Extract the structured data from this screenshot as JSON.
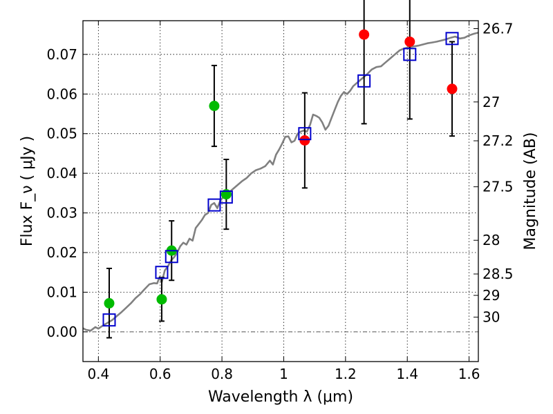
{
  "chart_data": {
    "type": "scatter",
    "xlabel": "Wavelength  λ (μm)",
    "ylabel": "Flux  F_ν  ( μJy )",
    "ylabel_right": "Magnitude (AB)",
    "xlim": [
      0.35,
      1.63
    ],
    "ylim": [
      -0.0075,
      0.0785
    ],
    "x_ticks": [
      0.4,
      0.6,
      0.8,
      1.0,
      1.2,
      1.4,
      1.6
    ],
    "x_tick_labels": [
      "0.4",
      "0.6",
      "0.8",
      "1",
      "1.2",
      "1.4",
      "1.6"
    ],
    "y_ticks": [
      0.0,
      0.01,
      0.02,
      0.03,
      0.04,
      0.05,
      0.06,
      0.07
    ],
    "y_tick_labels": [
      "0.00",
      "0.01",
      "0.02",
      "0.03",
      "0.04",
      "0.05",
      "0.06",
      "0.07"
    ],
    "right_ticks": [
      {
        "label": "26.7",
        "flux": 0.0765
      },
      {
        "label": "27",
        "flux": 0.058
      },
      {
        "label": "27.2",
        "flux": 0.0482
      },
      {
        "label": "27.5",
        "flux": 0.0366
      },
      {
        "label": "28",
        "flux": 0.0231
      },
      {
        "label": "28.5",
        "flux": 0.0146
      },
      {
        "label": "29",
        "flux": 0.0092
      },
      {
        "label": "30",
        "flux": 0.0037
      }
    ],
    "grid": true,
    "colors": {
      "green_points": "#00bb00",
      "red_points": "#ff0000",
      "model_squares": "#0000cc",
      "template_line": "#808080",
      "errorbars": "#000000"
    },
    "green_points": [
      {
        "x": 0.435,
        "y": 0.0072,
        "yerr_low": 0.0087,
        "yerr_high": 0.0088
      },
      {
        "x": 0.605,
        "y": 0.0082,
        "yerr_low": 0.0055,
        "yerr_high": 0.0055
      },
      {
        "x": 0.637,
        "y": 0.0205,
        "yerr_low": 0.0075,
        "yerr_high": 0.0075
      },
      {
        "x": 0.775,
        "y": 0.057,
        "yerr_low": 0.0102,
        "yerr_high": 0.0102
      },
      {
        "x": 0.814,
        "y": 0.0347,
        "yerr_low": 0.0088,
        "yerr_high": 0.0088
      }
    ],
    "red_points": [
      {
        "x": 1.068,
        "y": 0.0483,
        "yerr_low": 0.012,
        "yerr_high": 0.012
      },
      {
        "x": 1.26,
        "y": 0.075,
        "yerr_low": 0.0225,
        "yerr_high": 0.0225
      },
      {
        "x": 1.408,
        "y": 0.0732,
        "yerr_low": 0.0195,
        "yerr_high": 0.0195
      },
      {
        "x": 1.545,
        "y": 0.0613,
        "yerr_low": 0.0119,
        "yerr_high": 0.0119
      }
    ],
    "model_squares": [
      {
        "x": 0.435,
        "y": 0.003
      },
      {
        "x": 0.605,
        "y": 0.015
      },
      {
        "x": 0.637,
        "y": 0.019
      },
      {
        "x": 0.775,
        "y": 0.032
      },
      {
        "x": 0.814,
        "y": 0.034
      },
      {
        "x": 1.068,
        "y": 0.05
      },
      {
        "x": 1.26,
        "y": 0.0633
      },
      {
        "x": 1.408,
        "y": 0.07
      },
      {
        "x": 1.545,
        "y": 0.074
      }
    ],
    "template_line": [
      [
        0.35,
        0.0009
      ],
      [
        0.36,
        0.0005
      ],
      [
        0.375,
        0.0003
      ],
      [
        0.39,
        0.0012
      ],
      [
        0.4,
        0.0008
      ],
      [
        0.415,
        0.0016
      ],
      [
        0.43,
        0.0023
      ],
      [
        0.445,
        0.003
      ],
      [
        0.46,
        0.004
      ],
      [
        0.475,
        0.005
      ],
      [
        0.49,
        0.0061
      ],
      [
        0.505,
        0.0072
      ],
      [
        0.52,
        0.0085
      ],
      [
        0.535,
        0.0095
      ],
      [
        0.55,
        0.0108
      ],
      [
        0.565,
        0.012
      ],
      [
        0.58,
        0.0123
      ],
      [
        0.59,
        0.0122
      ],
      [
        0.598,
        0.0138
      ],
      [
        0.605,
        0.0125
      ],
      [
        0.615,
        0.0155
      ],
      [
        0.625,
        0.0165
      ],
      [
        0.635,
        0.018
      ],
      [
        0.645,
        0.0188
      ],
      [
        0.655,
        0.02
      ],
      [
        0.665,
        0.0216
      ],
      [
        0.675,
        0.0225
      ],
      [
        0.685,
        0.022
      ],
      [
        0.695,
        0.0235
      ],
      [
        0.705,
        0.023
      ],
      [
        0.715,
        0.0262
      ],
      [
        0.725,
        0.0272
      ],
      [
        0.735,
        0.0282
      ],
      [
        0.745,
        0.0295
      ],
      [
        0.755,
        0.03
      ],
      [
        0.765,
        0.032
      ],
      [
        0.775,
        0.0325
      ],
      [
        0.785,
        0.0312
      ],
      [
        0.795,
        0.0332
      ],
      [
        0.805,
        0.034
      ],
      [
        0.82,
        0.035
      ],
      [
        0.835,
        0.036
      ],
      [
        0.85,
        0.037
      ],
      [
        0.865,
        0.038
      ],
      [
        0.88,
        0.0388
      ],
      [
        0.895,
        0.04
      ],
      [
        0.91,
        0.0408
      ],
      [
        0.925,
        0.0412
      ],
      [
        0.94,
        0.0418
      ],
      [
        0.955,
        0.0432
      ],
      [
        0.965,
        0.0422
      ],
      [
        0.975,
        0.0447
      ],
      [
        0.985,
        0.046
      ],
      [
        0.995,
        0.0475
      ],
      [
        1.005,
        0.0492
      ],
      [
        1.015,
        0.0493
      ],
      [
        1.025,
        0.0478
      ],
      [
        1.035,
        0.0482
      ],
      [
        1.045,
        0.05
      ],
      [
        1.055,
        0.0505
      ],
      [
        1.065,
        0.0508
      ],
      [
        1.075,
        0.0505
      ],
      [
        1.085,
        0.0522
      ],
      [
        1.095,
        0.0548
      ],
      [
        1.105,
        0.0545
      ],
      [
        1.115,
        0.054
      ],
      [
        1.125,
        0.0528
      ],
      [
        1.135,
        0.051
      ],
      [
        1.145,
        0.052
      ],
      [
        1.155,
        0.054
      ],
      [
        1.165,
        0.056
      ],
      [
        1.175,
        0.058
      ],
      [
        1.185,
        0.0595
      ],
      [
        1.195,
        0.0605
      ],
      [
        1.205,
        0.06
      ],
      [
        1.215,
        0.0608
      ],
      [
        1.225,
        0.062
      ],
      [
        1.24,
        0.063
      ],
      [
        1.255,
        0.064
      ],
      [
        1.27,
        0.065
      ],
      [
        1.285,
        0.0662
      ],
      [
        1.3,
        0.0668
      ],
      [
        1.315,
        0.067
      ],
      [
        1.33,
        0.068
      ],
      [
        1.345,
        0.069
      ],
      [
        1.36,
        0.07
      ],
      [
        1.375,
        0.071
      ],
      [
        1.39,
        0.0715
      ],
      [
        1.405,
        0.0718
      ],
      [
        1.42,
        0.072
      ],
      [
        1.435,
        0.0722
      ],
      [
        1.45,
        0.0725
      ],
      [
        1.465,
        0.0728
      ],
      [
        1.48,
        0.073
      ],
      [
        1.495,
        0.0732
      ],
      [
        1.51,
        0.0735
      ],
      [
        1.525,
        0.0738
      ],
      [
        1.54,
        0.0742
      ],
      [
        1.555,
        0.0745
      ],
      [
        1.57,
        0.074
      ],
      [
        1.585,
        0.0742
      ],
      [
        1.6,
        0.0748
      ],
      [
        1.615,
        0.0752
      ],
      [
        1.63,
        0.0755
      ]
    ]
  }
}
